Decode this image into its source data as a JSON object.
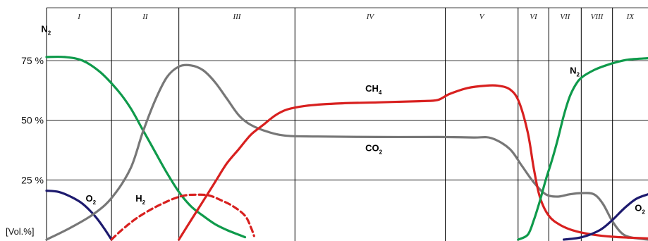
{
  "chart_data": {
    "type": "line",
    "title": "",
    "ylabel": "[Vol.%]",
    "xlabel": "",
    "x_range": [
      0,
      100
    ],
    "ylim": [
      0,
      100
    ],
    "y_ticks": [
      {
        "value": 25,
        "label": "25 %"
      },
      {
        "value": 50,
        "label": "50 %"
      },
      {
        "value": 75,
        "label": "75 %"
      }
    ],
    "phases": [
      {
        "label": "I",
        "start": 0,
        "end": 10.8
      },
      {
        "label": "II",
        "start": 10.8,
        "end": 22.0
      },
      {
        "label": "III",
        "start": 22.0,
        "end": 41.3
      },
      {
        "label": "IV",
        "start": 41.3,
        "end": 66.3
      },
      {
        "label": "V",
        "start": 66.3,
        "end": 78.4
      },
      {
        "label": "VI",
        "start": 78.4,
        "end": 83.5
      },
      {
        "label": "VII",
        "start": 83.5,
        "end": 88.9
      },
      {
        "label": "VIII",
        "start": 88.9,
        "end": 94.1
      },
      {
        "label": "IX",
        "start": 94.1,
        "end": 100
      }
    ],
    "grid": true,
    "series": [
      {
        "key": "n2_a",
        "label": "N",
        "sub": "2",
        "color": "#0f9a4b",
        "dash": false,
        "label_pos": [
          -0.9,
          87
        ],
        "points": [
          [
            0,
            76.5
          ],
          [
            3,
            76.5
          ],
          [
            6,
            75
          ],
          [
            9,
            70
          ],
          [
            12,
            62
          ],
          [
            14,
            55
          ],
          [
            16,
            46
          ],
          [
            18,
            37
          ],
          [
            20,
            28
          ],
          [
            22,
            20
          ],
          [
            24,
            14
          ],
          [
            26,
            10
          ],
          [
            28,
            6.5
          ],
          [
            30,
            4
          ],
          [
            32,
            2
          ],
          [
            33,
            1
          ]
        ]
      },
      {
        "key": "o2_a",
        "label": "O",
        "sub": "2",
        "color": "#1d1a6e",
        "dash": false,
        "label_pos": [
          6.5,
          16
        ],
        "points": [
          [
            0,
            20.5
          ],
          [
            2,
            20
          ],
          [
            4,
            18
          ],
          [
            6,
            15
          ],
          [
            8,
            10
          ],
          [
            9.5,
            5
          ],
          [
            10.8,
            0
          ]
        ]
      },
      {
        "key": "co2",
        "label": "CO",
        "sub": "2",
        "color": "#777777",
        "dash": false,
        "label_pos": [
          53,
          37
        ],
        "points": [
          [
            0,
            0
          ],
          [
            4,
            5
          ],
          [
            8,
            11
          ],
          [
            11,
            18
          ],
          [
            14,
            30
          ],
          [
            16,
            45
          ],
          [
            18,
            58
          ],
          [
            20,
            68
          ],
          [
            22,
            72.5
          ],
          [
            24,
            73
          ],
          [
            26,
            71
          ],
          [
            28,
            66
          ],
          [
            30,
            59
          ],
          [
            32,
            52
          ],
          [
            34,
            48
          ],
          [
            37,
            45
          ],
          [
            40,
            43.5
          ],
          [
            45,
            43.2
          ],
          [
            55,
            43
          ],
          [
            65,
            43
          ],
          [
            71,
            42.8
          ],
          [
            74,
            42.5
          ],
          [
            77,
            38
          ],
          [
            79,
            31
          ],
          [
            81,
            24
          ],
          [
            83,
            19
          ],
          [
            85,
            18
          ],
          [
            87,
            19
          ],
          [
            89,
            19.5
          ],
          [
            91,
            19
          ],
          [
            92.5,
            15
          ],
          [
            94,
            8
          ],
          [
            95.5,
            3
          ],
          [
            97,
            1
          ],
          [
            100,
            0
          ]
        ]
      },
      {
        "key": "ch4",
        "label": "CH",
        "sub": "4",
        "color": "#d8201f",
        "dash": false,
        "label_pos": [
          53,
          62
        ],
        "points": [
          [
            22,
            0
          ],
          [
            24,
            8
          ],
          [
            26,
            16
          ],
          [
            28,
            24
          ],
          [
            30,
            32
          ],
          [
            32,
            38
          ],
          [
            34,
            44
          ],
          [
            36,
            48
          ],
          [
            38,
            52
          ],
          [
            40,
            54.5
          ],
          [
            43,
            56
          ],
          [
            48,
            57
          ],
          [
            55,
            57.5
          ],
          [
            62,
            58
          ],
          [
            65,
            58.5
          ],
          [
            67,
            61
          ],
          [
            70,
            63.5
          ],
          [
            73,
            64.5
          ],
          [
            75,
            64.5
          ],
          [
            77,
            63
          ],
          [
            78.5,
            58
          ],
          [
            80,
            45
          ],
          [
            81,
            30
          ],
          [
            82,
            18
          ],
          [
            83.5,
            10
          ],
          [
            85.5,
            6
          ],
          [
            88,
            3.5
          ],
          [
            91,
            2
          ],
          [
            94,
            1.2
          ],
          [
            97,
            0.8
          ],
          [
            100,
            0.5
          ]
        ]
      },
      {
        "key": "h2",
        "label": "H",
        "sub": "2",
        "color": "#d8201f",
        "dash": true,
        "label_pos": [
          14.8,
          16
        ],
        "points": [
          [
            10.8,
            0
          ],
          [
            12.5,
            4
          ],
          [
            15,
            9
          ],
          [
            18,
            13.5
          ],
          [
            21,
            17
          ],
          [
            23,
            18.5
          ],
          [
            25,
            18.8
          ],
          [
            27,
            18.5
          ],
          [
            29,
            16.5
          ],
          [
            31,
            14
          ],
          [
            33,
            10
          ],
          [
            34,
            5
          ],
          [
            34.5,
            1.5
          ]
        ]
      },
      {
        "key": "n2_b",
        "label": "N",
        "sub": "2",
        "color": "#0f9a4b",
        "dash": false,
        "label_pos": [
          87,
          69.5
        ],
        "points": [
          [
            78.4,
            0
          ],
          [
            80,
            2
          ],
          [
            81,
            8
          ],
          [
            82,
            16
          ],
          [
            83,
            25
          ],
          [
            84,
            33
          ],
          [
            85,
            42
          ],
          [
            86,
            52
          ],
          [
            87,
            60
          ],
          [
            88,
            65
          ],
          [
            89,
            68
          ],
          [
            91,
            71
          ],
          [
            93,
            73
          ],
          [
            95,
            74.5
          ],
          [
            97,
            75.5
          ],
          [
            100,
            76
          ]
        ]
      },
      {
        "key": "o2_b",
        "label": "O",
        "sub": "2",
        "color": "#1d1a6e",
        "dash": false,
        "label_pos": [
          97.8,
          12
        ],
        "points": [
          [
            86,
            0
          ],
          [
            89,
            1
          ],
          [
            92,
            4
          ],
          [
            94,
            8
          ],
          [
            96,
            13
          ],
          [
            98,
            17
          ],
          [
            100,
            19
          ]
        ]
      }
    ]
  }
}
